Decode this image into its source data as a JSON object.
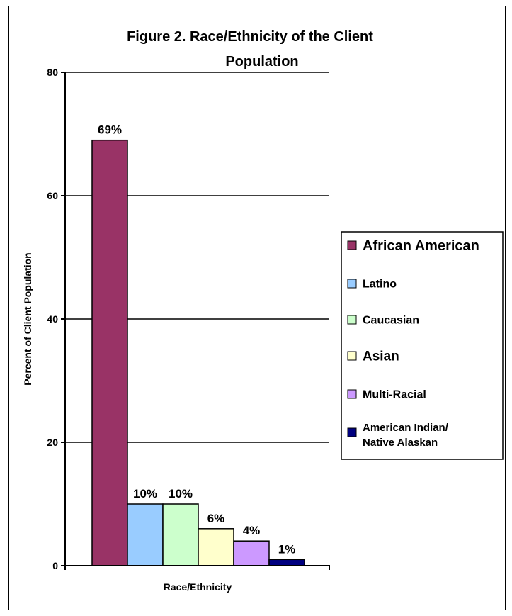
{
  "chart_data": {
    "type": "bar",
    "title_lines": [
      "Figure 2. Race/Ethnicity of the Client",
      "Population"
    ],
    "xlabel": "Race/Ethnicity",
    "ylabel": "Percent of Client Population",
    "ylim": [
      0,
      80
    ],
    "yticks": [
      "0",
      "20",
      "40",
      "60",
      "80"
    ],
    "grid": true,
    "legend_position": "right",
    "series": [
      {
        "name": "African American",
        "value": 69,
        "label": "69%",
        "color": "#993366"
      },
      {
        "name": "Latino",
        "value": 10,
        "label": "10%",
        "color": "#99CCFF"
      },
      {
        "name": "Caucasian",
        "value": 10,
        "label": "10%",
        "color": "#CCFFCC"
      },
      {
        "name": "Asian",
        "value": 6,
        "label": "6%",
        "color": "#FFFFCC"
      },
      {
        "name": "Multi-Racial",
        "value": 4,
        "label": "4%",
        "color": "#CC99FF"
      },
      {
        "name": "American Indian/ Native Alaskan",
        "value": 1,
        "label": "1%",
        "color": "#000080"
      }
    ]
  }
}
